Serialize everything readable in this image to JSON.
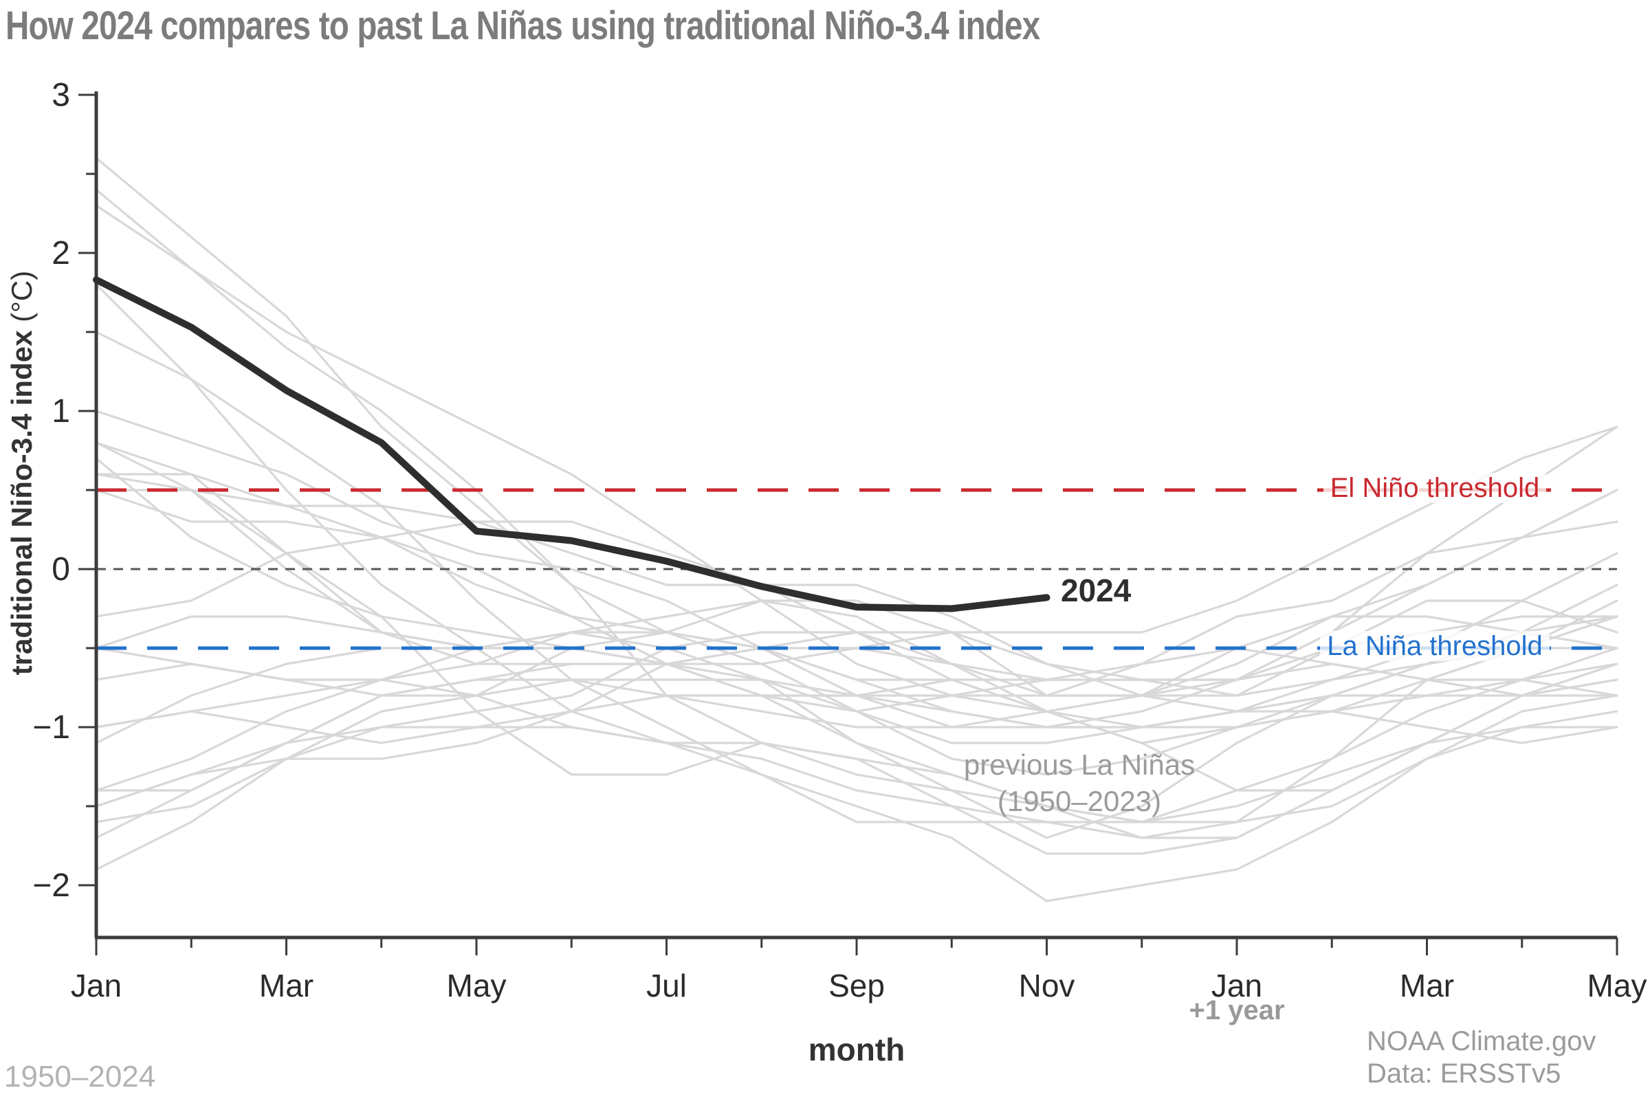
{
  "title": "How 2024 compares to past La Niñas using traditional Niño-3.4 index",
  "footer": {
    "range_note": "1950–2024",
    "credit_line1": "NOAA Climate.gov",
    "credit_line2": "Data: ERSSTv5"
  },
  "chart_data": {
    "type": "line",
    "title": "How 2024 compares to past La Niñas using traditional Niño-3.4 index",
    "xlabel": "month",
    "ylabel": "traditional Niño-3.4 index (°C)",
    "ylabel_bold": "traditional Niño-3.4 index",
    "ylabel_units": " (°C)",
    "x_tick_labels": [
      "Jan",
      "Mar",
      "May",
      "Jul",
      "Sep",
      "Nov",
      "Jan",
      "Mar",
      "May"
    ],
    "plus_one_year_label": "+1 year",
    "x_months_total": 17,
    "y_ticks": [
      3,
      2,
      1,
      0,
      -1,
      -2
    ],
    "y_minor_ticks": [
      2.5,
      1.5,
      0.5,
      -0.5,
      -1.5
    ],
    "ylim": [
      -2.33,
      3
    ],
    "grid": false,
    "zero_line": {
      "value": 0,
      "color": "#565656"
    },
    "thresholds": {
      "el_nino": {
        "value": 0.5,
        "label": "El Niño threshold",
        "color": "#c9292e"
      },
      "la_nina": {
        "value": -0.5,
        "label": "La Niña threshold",
        "color": "#2271cd"
      }
    },
    "highlight_series": {
      "name": "2024",
      "color": "#2e2e2e",
      "months": [
        "Jan",
        "Feb",
        "Mar",
        "Apr",
        "May",
        "Jun",
        "Jul",
        "Aug",
        "Sep",
        "Oct",
        "Nov"
      ],
      "values": [
        1.83,
        1.53,
        1.13,
        0.8,
        0.24,
        0.18,
        0.05,
        -0.11,
        -0.24,
        -0.25,
        -0.18
      ]
    },
    "ensemble": {
      "label_line1": "previous La Niñas",
      "label_line2": "(1950–2023)",
      "color": "#d8d8d8",
      "series": [
        [
          -1.5,
          -1.3,
          -1.2,
          -1.2,
          -1.1,
          -0.9,
          -0.6,
          -0.5,
          -0.4,
          -0.4,
          -0.8,
          -0.8,
          -0.8,
          -0.5,
          -0.2,
          -0.2,
          -0.4
        ],
        [
          0.6,
          0.5,
          0.0,
          -0.4,
          -0.5,
          -0.5,
          -0.6,
          -0.8,
          -0.9,
          -0.8,
          -0.7,
          -0.7,
          -0.7,
          -0.6,
          -0.7,
          -0.8,
          -0.8
        ],
        [
          -0.7,
          -0.6,
          -0.7,
          -0.8,
          -0.8,
          -0.7,
          -0.7,
          -0.7,
          -1.1,
          -1.4,
          -1.7,
          -1.5,
          -1.1,
          -0.8,
          -0.6,
          -0.5,
          -0.5
        ],
        [
          -1.1,
          -0.8,
          -0.6,
          -0.5,
          -0.5,
          -0.5,
          -0.6,
          -0.6,
          -0.5,
          -0.4,
          -0.4,
          -0.4,
          -0.2,
          0.1,
          0.4,
          0.7,
          0.9
        ],
        [
          0.8,
          0.6,
          0.1,
          -0.4,
          -0.6,
          -0.6,
          -0.6,
          -0.7,
          -0.8,
          -0.8,
          -0.8,
          -0.8,
          -0.6,
          -0.3,
          -0.1,
          0.2,
          0.5
        ],
        [
          0.5,
          0.3,
          0.3,
          0.2,
          0.0,
          -0.3,
          -0.6,
          -0.8,
          -0.8,
          -0.7,
          -0.9,
          -1.1,
          -1.4,
          -1.4,
          -1.1,
          -0.8,
          -0.7
        ],
        [
          -1.4,
          -1.4,
          -1.1,
          -0.8,
          -0.7,
          -0.7,
          -0.8,
          -0.8,
          -0.8,
          -0.9,
          -1.0,
          -0.9,
          -0.7,
          -0.4,
          0.1,
          0.5,
          0.9
        ],
        [
          1.8,
          1.2,
          0.5,
          -0.1,
          -0.5,
          -0.9,
          -1.1,
          -1.3,
          -1.5,
          -1.7,
          -2.1,
          -2.0,
          -1.9,
          -1.6,
          -1.2,
          -1.0,
          -0.9
        ],
        [
          -1.9,
          -1.6,
          -1.2,
          -1.0,
          -0.9,
          -0.8,
          -0.5,
          -0.4,
          -0.4,
          -0.6,
          -0.8,
          -0.6,
          -0.5,
          -0.6,
          -0.7,
          -0.7,
          -0.8
        ],
        [
          -0.5,
          -0.6,
          -0.7,
          -0.7,
          -0.8,
          -1.0,
          -1.1,
          -1.2,
          -1.4,
          -1.5,
          -1.6,
          -1.7,
          -1.6,
          -1.2,
          -0.7,
          -0.5,
          -0.3
        ],
        [
          2.3,
          1.9,
          1.5,
          1.2,
          0.9,
          0.6,
          0.2,
          -0.2,
          -0.6,
          -0.8,
          -0.9,
          -0.8,
          -0.5,
          -0.3,
          -0.3,
          -0.4,
          -0.5
        ],
        [
          -0.5,
          -0.3,
          -0.3,
          -0.4,
          -0.5,
          -0.4,
          -0.3,
          -0.2,
          -0.3,
          -0.6,
          -0.9,
          -1.1,
          -1.0,
          -0.8,
          -0.8,
          -0.8,
          -0.6
        ],
        [
          0.8,
          0.5,
          0.1,
          -0.3,
          -0.9,
          -1.3,
          -1.3,
          -1.1,
          -1.2,
          -1.5,
          -1.8,
          -1.8,
          -1.7,
          -1.4,
          -1.1,
          -0.8,
          -0.6
        ],
        [
          1.0,
          0.8,
          0.6,
          0.3,
          0.1,
          0.0,
          -0.2,
          -0.5,
          -0.8,
          -1.0,
          -1.0,
          -1.0,
          -0.9,
          -0.8,
          -0.6,
          -0.4,
          -0.3
        ],
        [
          2.4,
          1.9,
          1.4,
          1.0,
          0.5,
          -0.1,
          -0.8,
          -1.1,
          -1.3,
          -1.4,
          -1.5,
          -1.6,
          -1.5,
          -1.3,
          -1.1,
          -1.0,
          -1.0
        ],
        [
          -1.5,
          -1.3,
          -1.1,
          -1.0,
          -1.0,
          -1.0,
          -1.1,
          -1.1,
          -1.2,
          -1.3,
          -1.5,
          -1.7,
          -1.7,
          -1.4,
          -1.1,
          -0.8,
          -0.7
        ],
        [
          -1.7,
          -1.4,
          -1.1,
          -0.8,
          -0.7,
          -0.6,
          -0.6,
          -0.5,
          -0.5,
          -0.6,
          -0.7,
          -0.7,
          -0.7,
          -0.5,
          -0.4,
          -0.3,
          -0.3
        ],
        [
          0.6,
          0.6,
          0.4,
          0.4,
          0.3,
          0.1,
          -0.1,
          -0.1,
          -0.1,
          -0.3,
          -0.6,
          -0.8,
          -0.9,
          -0.8,
          -0.6,
          -0.4,
          -0.1
        ],
        [
          0.7,
          0.2,
          -0.1,
          -0.3,
          -0.4,
          -0.5,
          -0.6,
          -0.8,
          -1.1,
          -1.3,
          -1.5,
          -1.6,
          -1.6,
          -1.5,
          -1.2,
          -0.9,
          -0.8
        ],
        [
          -1.6,
          -1.5,
          -1.2,
          -0.9,
          -0.8,
          -0.5,
          -0.4,
          -0.2,
          -0.2,
          -0.4,
          -0.6,
          -0.7,
          -0.8,
          -0.7,
          -0.5,
          -0.2,
          0.1
        ],
        [
          1.5,
          1.2,
          0.8,
          0.4,
          -0.2,
          -0.7,
          -1.0,
          -1.3,
          -1.6,
          -1.6,
          -1.6,
          -1.6,
          -1.4,
          -1.2,
          -0.9,
          -0.7,
          -0.6
        ],
        [
          -1.4,
          -1.2,
          -0.9,
          -0.7,
          -0.6,
          -0.4,
          -0.5,
          -0.7,
          -0.9,
          -1.1,
          -1.1,
          -1.0,
          -0.9,
          -0.7,
          -0.6,
          -0.5,
          -0.3
        ],
        [
          2.6,
          2.1,
          1.6,
          0.9,
          0.4,
          -0.1,
          -0.4,
          -0.5,
          -0.7,
          -0.7,
          -0.7,
          -0.6,
          -0.3,
          -0.2,
          0.1,
          0.2,
          0.3
        ],
        [
          -0.3,
          -0.2,
          0.1,
          0.2,
          0.3,
          0.3,
          0.1,
          -0.1,
          -0.4,
          -0.7,
          -0.9,
          -1.0,
          -0.9,
          -0.9,
          -0.7,
          -0.5,
          -0.2
        ],
        [
          0.5,
          0.5,
          0.4,
          0.2,
          -0.1,
          -0.3,
          -0.4,
          -0.6,
          -0.9,
          -1.2,
          -1.3,
          -1.2,
          -1.0,
          -0.9,
          -0.8,
          -0.7,
          -0.5
        ],
        [
          -1.0,
          -0.9,
          -0.8,
          -0.7,
          -0.5,
          -0.4,
          -0.4,
          -0.5,
          -0.7,
          -0.9,
          -1.0,
          -1.0,
          -1.0,
          -0.9,
          -1.0,
          -1.1,
          -1.0
        ],
        [
          -1.0,
          -0.9,
          -1.0,
          -1.1,
          -1.0,
          -0.9,
          -0.8,
          -0.9,
          -1.0,
          -1.0,
          -0.9,
          -0.8,
          -0.7,
          -0.4,
          -0.1,
          0.2,
          0.5
        ]
      ]
    }
  }
}
